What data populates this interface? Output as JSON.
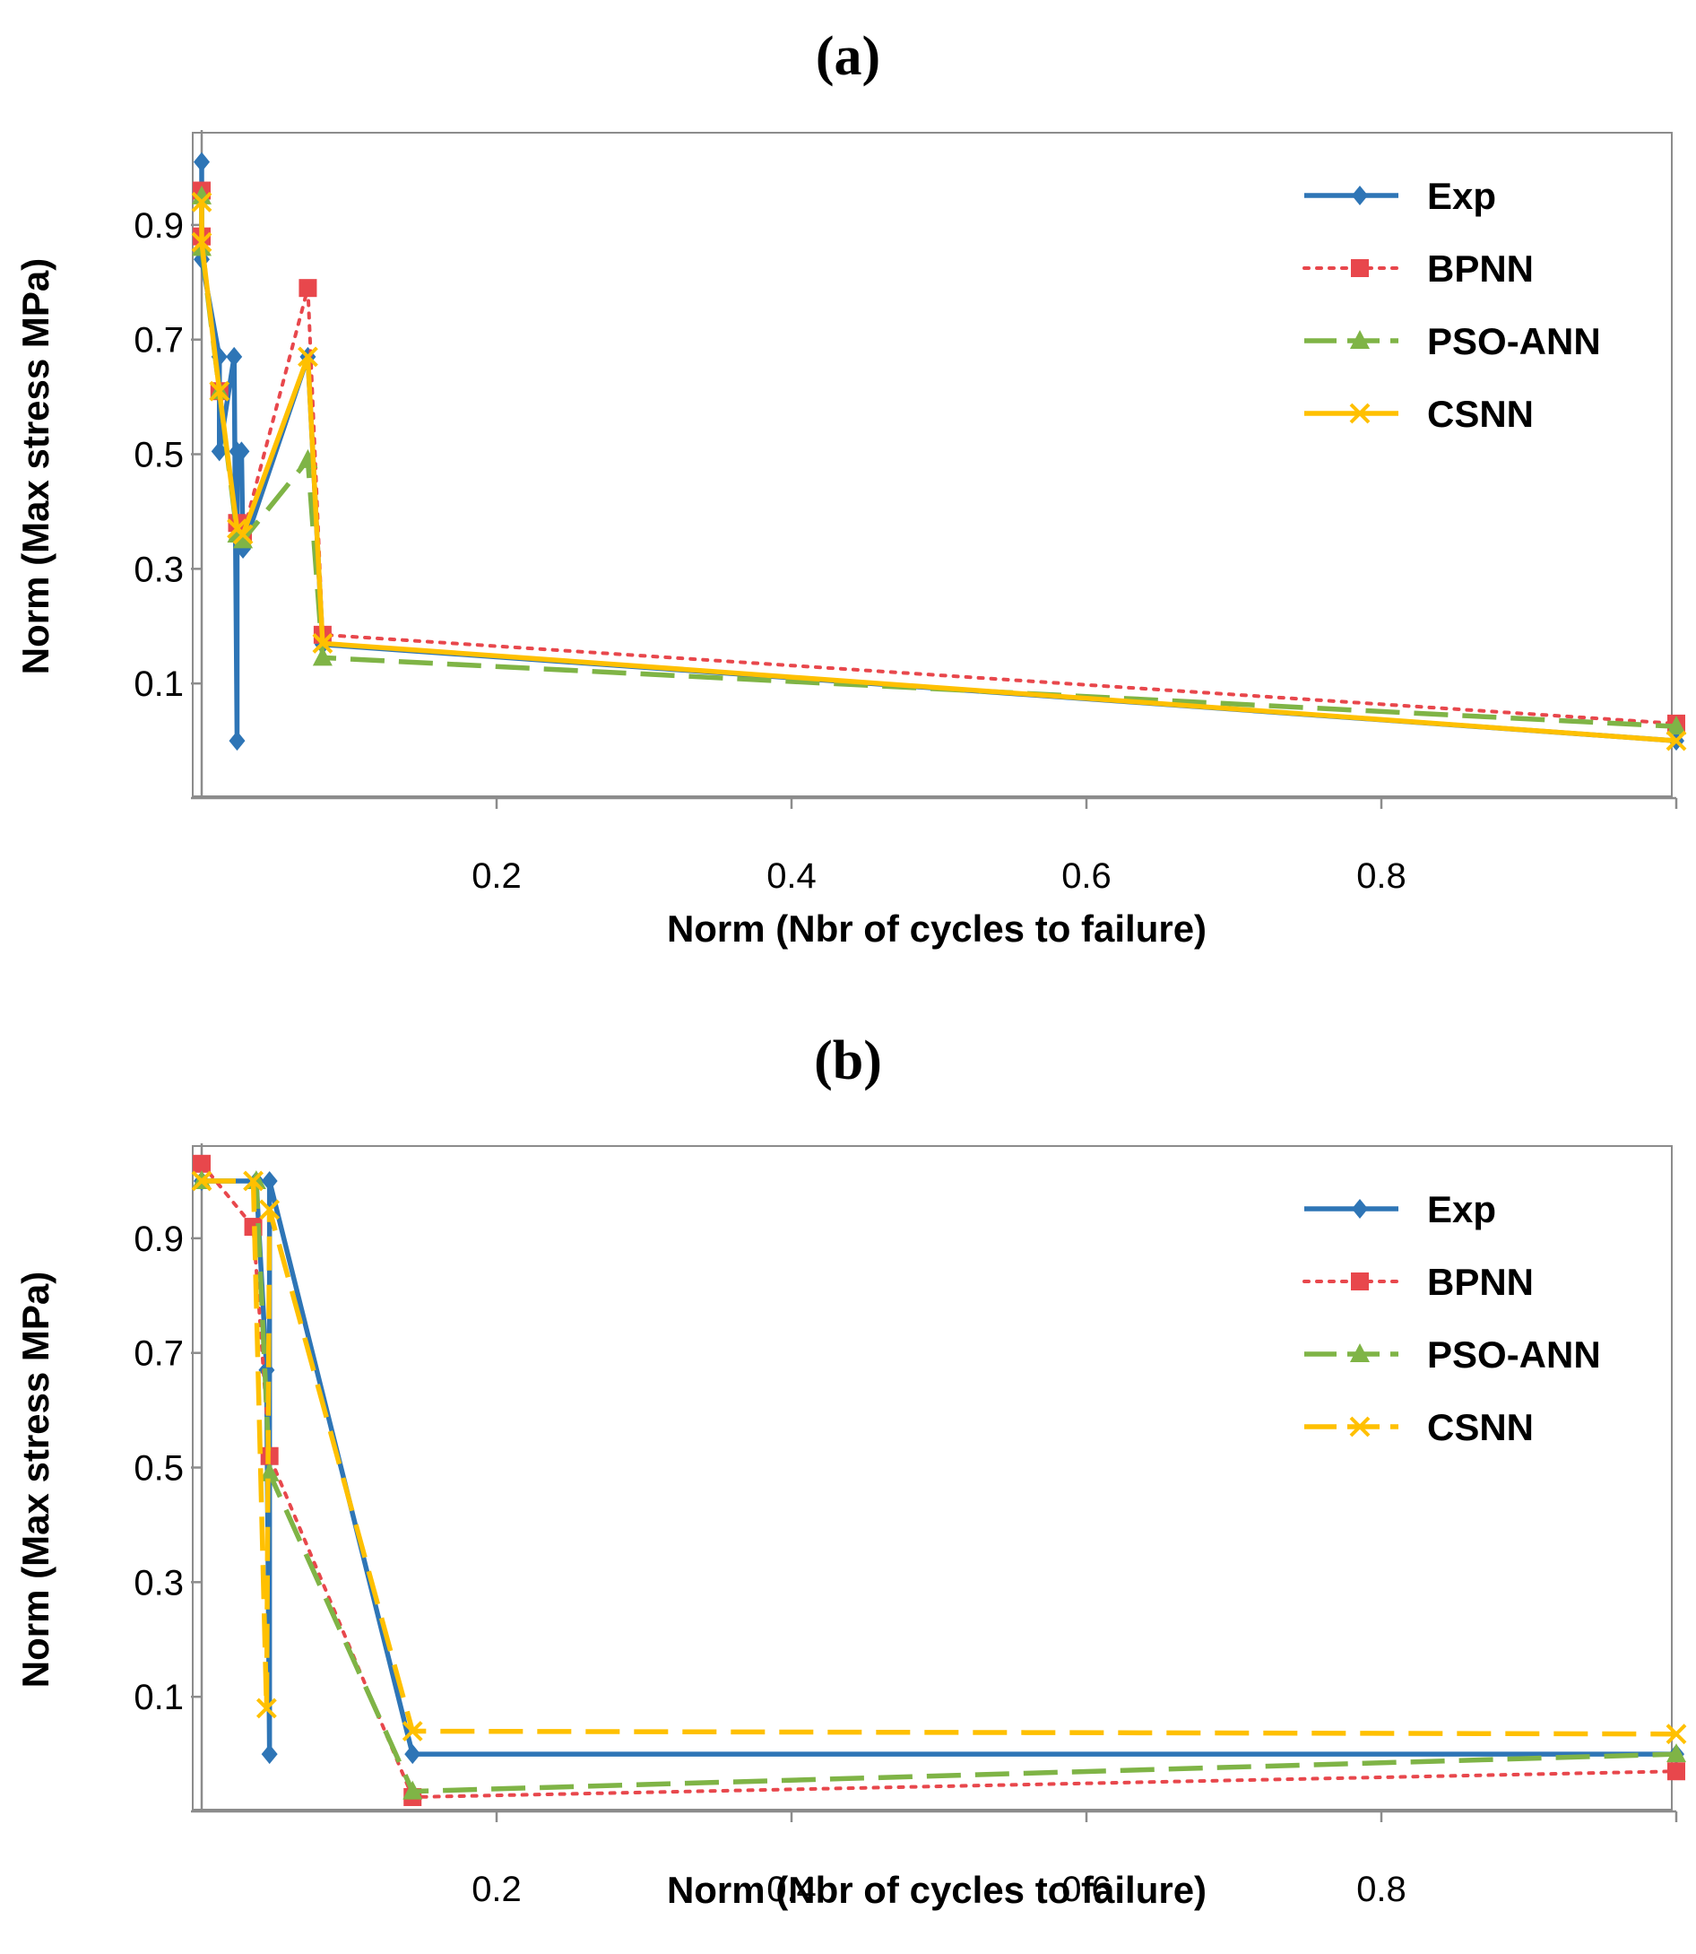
{
  "panels": [
    {
      "title": "(a)"
    },
    {
      "title": "(b)"
    }
  ],
  "chart_data": [
    {
      "type": "line",
      "panel": "(a)",
      "title": "(a)",
      "xlabel": "Norm (Nbr of cycles to failure)",
      "ylabel": "Norm (Max stress MPa)",
      "xlim": [
        0,
        1
      ],
      "ylim": [
        -0.1,
        1.05
      ],
      "xticks": [
        0.2,
        0.4,
        0.6,
        0.8
      ],
      "yticks": [
        0.1,
        0.3,
        0.5,
        0.7,
        0.9
      ],
      "legend_position": "top-right",
      "series": [
        {
          "name": "Exp",
          "color": "#2E75B6",
          "style": "solid",
          "marker": "diamond",
          "x": [
            0.0,
            0.0,
            0.012,
            0.012,
            0.022,
            0.024,
            0.024,
            0.027,
            0.028,
            0.072,
            0.082,
            1.0
          ],
          "y": [
            1.01,
            0.84,
            0.67,
            0.505,
            0.67,
            0.0,
            0.505,
            0.505,
            0.335,
            0.67,
            0.168,
            0.0
          ]
        },
        {
          "name": "BPNN",
          "color": "#E8474C",
          "style": "dotted",
          "marker": "square",
          "x": [
            0.0,
            0.0,
            0.012,
            0.024,
            0.028,
            0.072,
            0.082,
            1.0
          ],
          "y": [
            0.96,
            0.88,
            0.61,
            0.38,
            0.36,
            0.79,
            0.185,
            0.03
          ]
        },
        {
          "name": "PSO-ANN",
          "color": "#7FB446",
          "style": "dashed",
          "marker": "triangle",
          "x": [
            0.0,
            0.0,
            0.012,
            0.024,
            0.028,
            0.072,
            0.082,
            1.0
          ],
          "y": [
            0.95,
            0.86,
            0.61,
            0.36,
            0.35,
            0.49,
            0.145,
            0.025
          ]
        },
        {
          "name": "CSNN",
          "color": "#FFC000",
          "style": "solid",
          "marker": "x",
          "x": [
            0.0,
            0.0,
            0.012,
            0.024,
            0.028,
            0.072,
            0.082,
            1.0
          ],
          "y": [
            0.94,
            0.87,
            0.61,
            0.37,
            0.36,
            0.67,
            0.17,
            0.0
          ]
        }
      ]
    },
    {
      "type": "line",
      "panel": "(b)",
      "title": "(b)",
      "xlabel": "Norm (Nbr of cycles to failure)",
      "ylabel": "Norm (Max stress MPa)",
      "xlim": [
        0,
        1
      ],
      "ylim": [
        -0.1,
        1.05
      ],
      "xticks": [
        0.2,
        0.4,
        0.6,
        0.8
      ],
      "yticks": [
        0.1,
        0.3,
        0.5,
        0.7,
        0.9
      ],
      "legend_position": "top-right",
      "series": [
        {
          "name": "Exp",
          "color": "#2E75B6",
          "style": "solid",
          "marker": "diamond",
          "x": [
            0.0,
            0.037,
            0.044,
            0.046,
            0.046,
            0.143,
            1.0
          ],
          "y": [
            1.0,
            1.0,
            0.67,
            0.0,
            1.0,
            0.0,
            0.0
          ]
        },
        {
          "name": "BPNN",
          "color": "#E8474C",
          "style": "dotted",
          "marker": "square",
          "x": [
            0.0,
            0.035,
            0.046,
            0.143,
            1.0
          ],
          "y": [
            1.03,
            0.92,
            0.52,
            -0.075,
            -0.03
          ]
        },
        {
          "name": "PSO-ANN",
          "color": "#7FB446",
          "style": "dashed",
          "marker": "triangle",
          "x": [
            0.0,
            0.037,
            0.046,
            0.143,
            1.0
          ],
          "y": [
            1.0,
            1.0,
            0.49,
            -0.065,
            0.0
          ]
        },
        {
          "name": "CSNN",
          "color": "#FFC000",
          "style": "dashed",
          "marker": "x",
          "x": [
            0.0,
            0.035,
            0.044,
            0.046,
            0.143,
            1.0
          ],
          "y": [
            1.0,
            1.0,
            0.08,
            0.95,
            0.04,
            0.035
          ]
        }
      ]
    }
  ]
}
